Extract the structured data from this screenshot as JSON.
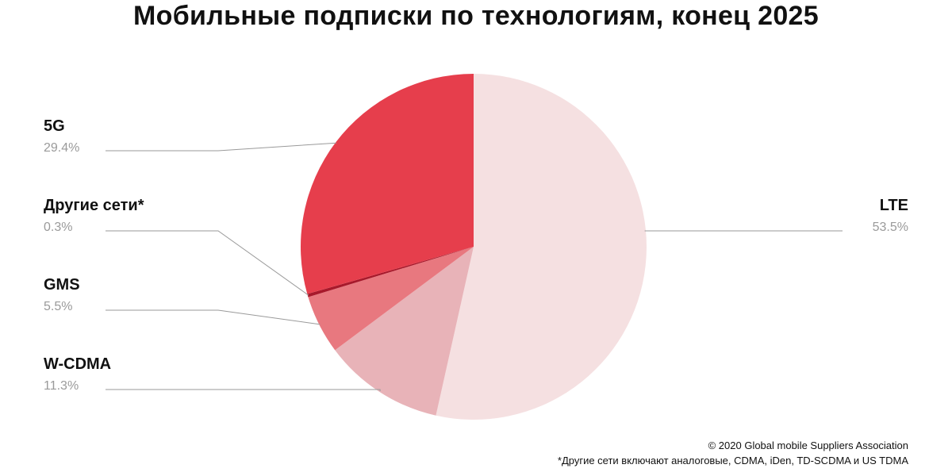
{
  "chart_data": {
    "type": "pie",
    "title": "Мобильные подписки по технологиям, конец 2025",
    "slices": [
      {
        "name": "LTE",
        "value": 53.5,
        "label": "53.5%",
        "color": "#f5e0e1"
      },
      {
        "name": "W-CDMA",
        "value": 11.3,
        "label": "11.3%",
        "color": "#e8b3b8"
      },
      {
        "name": "GMS",
        "value": 5.5,
        "label": "5.5%",
        "color": "#e8787f"
      },
      {
        "name": "Другие сети*",
        "value": 0.3,
        "label": "0.3%",
        "color": "#a8192b"
      },
      {
        "name": "5G",
        "value": 29.4,
        "label": "29.4%",
        "color": "#e63e4c"
      }
    ]
  },
  "footer": {
    "copyright": "© 2020 Global mobile Suppliers Association",
    "note": "*Другие сети включают аналоговые, CDMA, iDen, TD-SCDMA и US TDMA"
  }
}
